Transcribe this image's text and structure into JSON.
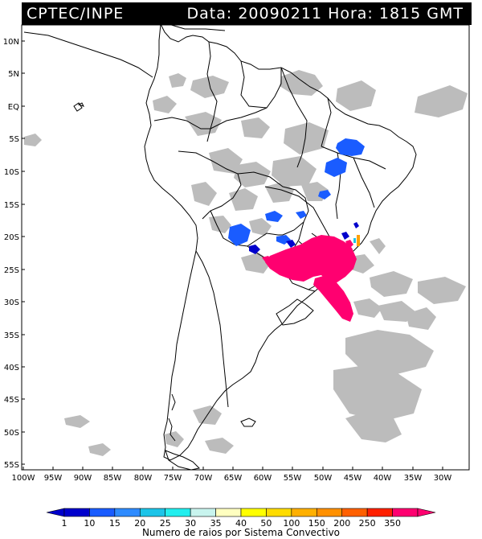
{
  "header": {
    "source": "CPTEC/INPE",
    "datetime": "Data: 20090211 Hora: 1815 GMT"
  },
  "map": {
    "lat_labels": [
      "10N",
      "5N",
      "EQ",
      "5S",
      "10S",
      "15S",
      "20S",
      "25S",
      "30S",
      "35S",
      "40S",
      "45S",
      "50S",
      "55S"
    ],
    "lon_labels": [
      "100W",
      "95W",
      "90W",
      "85W",
      "80W",
      "75W",
      "70W",
      "65W",
      "60W",
      "55W",
      "50W",
      "45W",
      "40W",
      "35W",
      "30W"
    ]
  },
  "legend": {
    "values": [
      "1",
      "10",
      "15",
      "20",
      "25",
      "30",
      "35",
      "40",
      "50",
      "100",
      "150",
      "200",
      "250",
      "350"
    ],
    "colors": [
      "#0000cc",
      "#1a5cff",
      "#2e8bff",
      "#1cc4e8",
      "#22eeee",
      "#c8f4ee",
      "#ffffc0",
      "#ffff00",
      "#ffdc00",
      "#ffb000",
      "#ff9000",
      "#ff6000",
      "#ff2000",
      "#ff0070"
    ],
    "caption": "Numero de raios por Sistema Convectivo"
  },
  "colors": {
    "cloud": "#b8b8b8",
    "cloud_dark": "#a8a8a8",
    "blue_cells": "#1a5cff",
    "dark_blue_cells": "#0000cc",
    "magenta_cells": "#ff0070",
    "orange_cell": "#ffa000"
  }
}
